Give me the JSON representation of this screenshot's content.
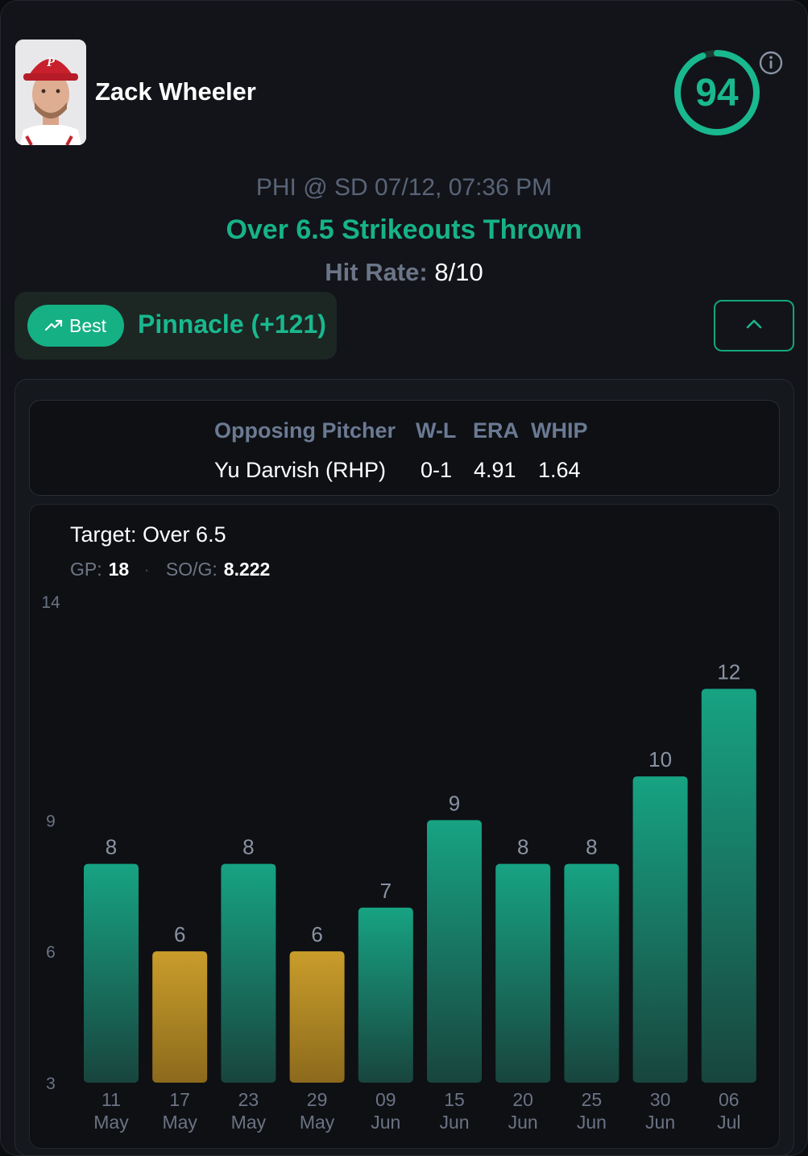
{
  "player": {
    "name": "Zack Wheeler",
    "avatar_icon": "player-headshot-phillies"
  },
  "score": {
    "value": "94",
    "fraction": 0.94,
    "color": "#19b88e",
    "info_icon": "info-icon"
  },
  "game": {
    "matchup": "PHI @ SD 07/12, 07:36 PM",
    "prop": "Over 6.5 Strikeouts Thrown",
    "hit_rate_label": "Hit Rate:",
    "hit_rate_value": "8/10"
  },
  "book": {
    "badge_label": "Best",
    "badge_icon": "trending-up-icon",
    "name": "Pinnacle (+121)",
    "toggle_icon": "chevron-up-icon"
  },
  "pitcher_table": {
    "headers": [
      "Opposing Pitcher",
      "W-L",
      "ERA",
      "WHIP"
    ],
    "row": [
      "Yu Darvish (RHP)",
      "0-1",
      "4.91",
      "1.64"
    ]
  },
  "chart_header": {
    "target": "Target: Over 6.5",
    "gp_label": "GP:",
    "gp_value": "18",
    "sog_label": "SO/G:",
    "sog_value": "8.222"
  },
  "chart_data": {
    "type": "bar",
    "categories": [
      [
        "11",
        "May"
      ],
      [
        "17",
        "May"
      ],
      [
        "23",
        "May"
      ],
      [
        "29",
        "May"
      ],
      [
        "09",
        "Jun"
      ],
      [
        "15",
        "Jun"
      ],
      [
        "20",
        "Jun"
      ],
      [
        "25",
        "Jun"
      ],
      [
        "30",
        "Jun"
      ],
      [
        "06",
        "Jul"
      ]
    ],
    "values": [
      8,
      6,
      8,
      6,
      7,
      9,
      8,
      8,
      10,
      12
    ],
    "target": 6.5,
    "yticks": [
      3,
      6,
      9,
      14
    ],
    "ylim": [
      3,
      14
    ],
    "colors": {
      "hit": "#17a383",
      "miss": "#c79a2a"
    }
  }
}
